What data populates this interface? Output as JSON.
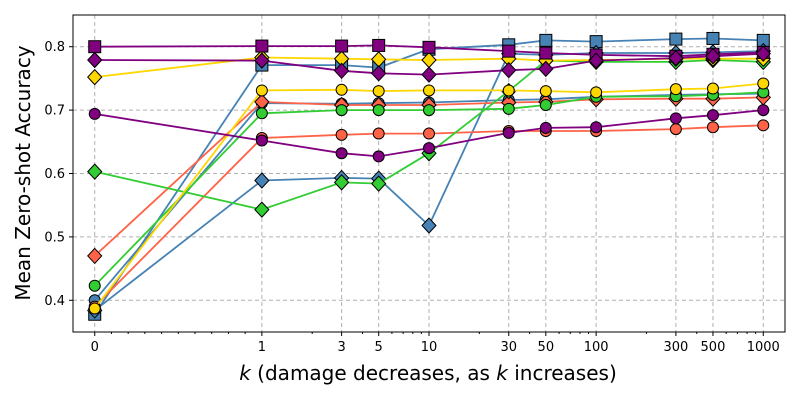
{
  "chart_data": {
    "type": "line",
    "xlabel_prefix": "k",
    "xlabel_mid": " (damage decreases, as ",
    "xlabel_italic2": "k",
    "xlabel_suffix": " increases)",
    "ylabel": "Mean Zero-shot Accuracy",
    "ylim": [
      0.35,
      0.85
    ],
    "x_scale": "symlog",
    "grid": true,
    "x_ticks": [
      0,
      1,
      3,
      5,
      10,
      30,
      50,
      100,
      300,
      500,
      1000
    ],
    "x_tick_labels": [
      "0",
      "1",
      "3",
      "5",
      "10",
      "30",
      "50",
      "100",
      "300",
      "500",
      "1000"
    ],
    "y_ticks": [
      0.4,
      0.5,
      0.6,
      0.7,
      0.8
    ],
    "y_tick_labels": [
      "0.4",
      "0.5",
      "0.6",
      "0.7",
      "0.8"
    ],
    "x": [
      0,
      1,
      3,
      5,
      10,
      30,
      50,
      100,
      300,
      500,
      1000
    ],
    "series": [
      {
        "color": "#4682b4",
        "marker": "square",
        "values": [
          0.378,
          0.771,
          0.771,
          0.767,
          0.796,
          0.803,
          0.81,
          0.808,
          0.812,
          0.813,
          0.81
        ]
      },
      {
        "color": "#4682b4",
        "marker": "diamond",
        "values": [
          0.384,
          0.589,
          0.593,
          0.592,
          0.518,
          0.789,
          0.787,
          0.79,
          0.79,
          0.791,
          0.793
        ]
      },
      {
        "color": "#4682b4",
        "marker": "circle",
        "values": [
          0.4,
          0.711,
          0.71,
          0.711,
          0.712,
          0.716,
          0.717,
          0.721,
          0.724,
          0.725,
          0.726
        ]
      },
      {
        "color": "#ff6347",
        "marker": "diamond",
        "values": [
          0.47,
          0.713,
          0.708,
          0.708,
          0.708,
          0.712,
          0.713,
          0.717,
          0.718,
          0.718,
          0.72
        ]
      },
      {
        "color": "#ff6347",
        "marker": "circle",
        "values": [
          0.39,
          0.656,
          0.661,
          0.663,
          0.663,
          0.667,
          0.667,
          0.667,
          0.67,
          0.673,
          0.676
        ]
      },
      {
        "color": "#32cd32",
        "marker": "diamond",
        "values": [
          0.603,
          0.543,
          0.586,
          0.584,
          0.632,
          0.73,
          0.778,
          0.776,
          0.776,
          0.779,
          0.776
        ]
      },
      {
        "color": "#32cd32",
        "marker": "circle",
        "values": [
          0.423,
          0.695,
          0.7,
          0.7,
          0.7,
          0.702,
          0.708,
          0.721,
          0.722,
          0.724,
          0.728
        ]
      },
      {
        "color": "#ffd700",
        "marker": "diamond",
        "values": [
          0.752,
          0.783,
          0.781,
          0.78,
          0.779,
          0.781,
          0.778,
          0.779,
          0.781,
          0.781,
          0.781
        ]
      },
      {
        "color": "#ffd700",
        "marker": "circle",
        "values": [
          0.387,
          0.731,
          0.732,
          0.73,
          0.731,
          0.731,
          0.73,
          0.728,
          0.733,
          0.734,
          0.742
        ]
      },
      {
        "color": "#800080",
        "marker": "square",
        "values": [
          0.8,
          0.801,
          0.801,
          0.802,
          0.799,
          0.793,
          0.79,
          0.787,
          0.785,
          0.788,
          0.791
        ]
      },
      {
        "color": "#800080",
        "marker": "diamond",
        "values": [
          0.779,
          0.778,
          0.762,
          0.758,
          0.756,
          0.763,
          0.765,
          0.778,
          0.782,
          0.785,
          0.789
        ]
      },
      {
        "color": "#800080",
        "marker": "circle",
        "values": [
          0.694,
          0.652,
          0.632,
          0.627,
          0.64,
          0.664,
          0.672,
          0.673,
          0.687,
          0.692,
          0.7
        ]
      }
    ]
  }
}
